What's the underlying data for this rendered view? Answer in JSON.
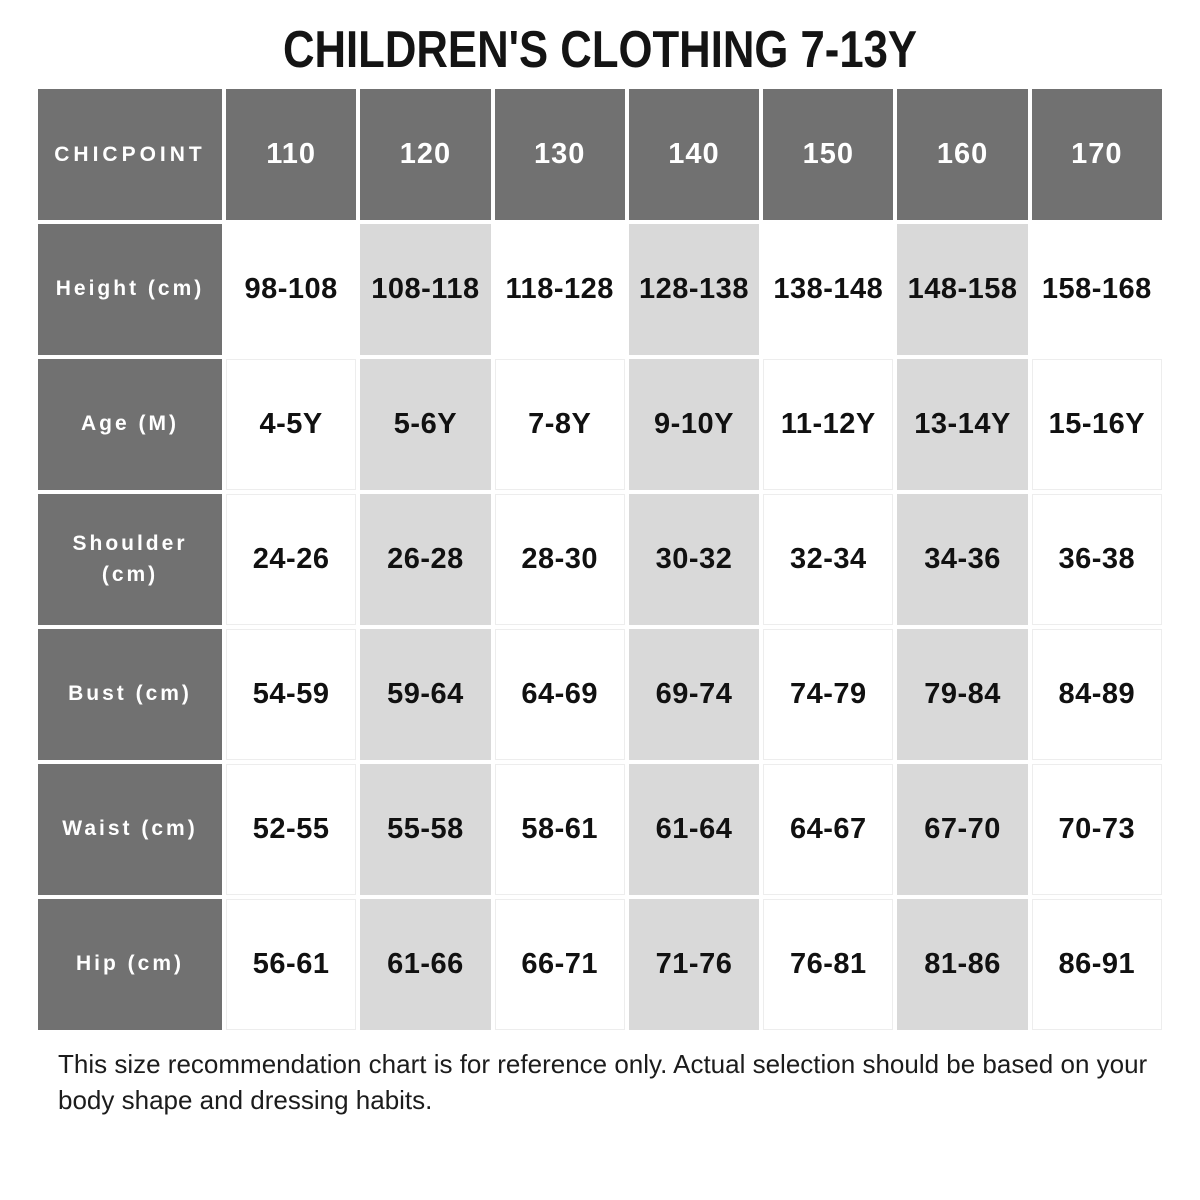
{
  "chart_data": {
    "type": "table",
    "title": "CHILDREN'S CLOTHING 7-13Y",
    "brand": "CHICPOINT",
    "size_columns": [
      "110",
      "120",
      "130",
      "140",
      "150",
      "160",
      "170"
    ],
    "shaded_columns": [
      "120",
      "140",
      "160"
    ],
    "rows": [
      {
        "label": "Height (cm)",
        "values": [
          "98-108",
          "108-118",
          "118-128",
          "128-138",
          "138-148",
          "148-158",
          "158-168"
        ]
      },
      {
        "label": "Age (M)",
        "values": [
          "4-5Y",
          "5-6Y",
          "7-8Y",
          "9-10Y",
          "11-12Y",
          "13-14Y",
          "15-16Y"
        ]
      },
      {
        "label": "Shoulder (cm)",
        "values": [
          "24-26",
          "26-28",
          "28-30",
          "30-32",
          "32-34",
          "34-36",
          "36-38"
        ]
      },
      {
        "label": "Bust (cm)",
        "values": [
          "54-59",
          "59-64",
          "64-69",
          "69-74",
          "74-79",
          "79-84",
          "84-89"
        ]
      },
      {
        "label": "Waist (cm)",
        "values": [
          "52-55",
          "55-58",
          "58-61",
          "61-64",
          "64-67",
          "67-70",
          "70-73"
        ]
      },
      {
        "label": "Hip (cm)",
        "values": [
          "56-61",
          "61-66",
          "66-71",
          "71-76",
          "76-81",
          "81-86",
          "86-91"
        ]
      }
    ],
    "layout": {
      "grid": "table",
      "legend": "none",
      "shading_pattern": "alternate-columns"
    }
  },
  "footer_note": "This size recommendation chart is for reference only. Actual selection should be based on your body shape and dressing habits.",
  "colors": {
    "header_bg": "#717171",
    "header_text": "#ffffff",
    "shaded_cell_bg": "#d9d9d9",
    "value_text": "#111111"
  }
}
